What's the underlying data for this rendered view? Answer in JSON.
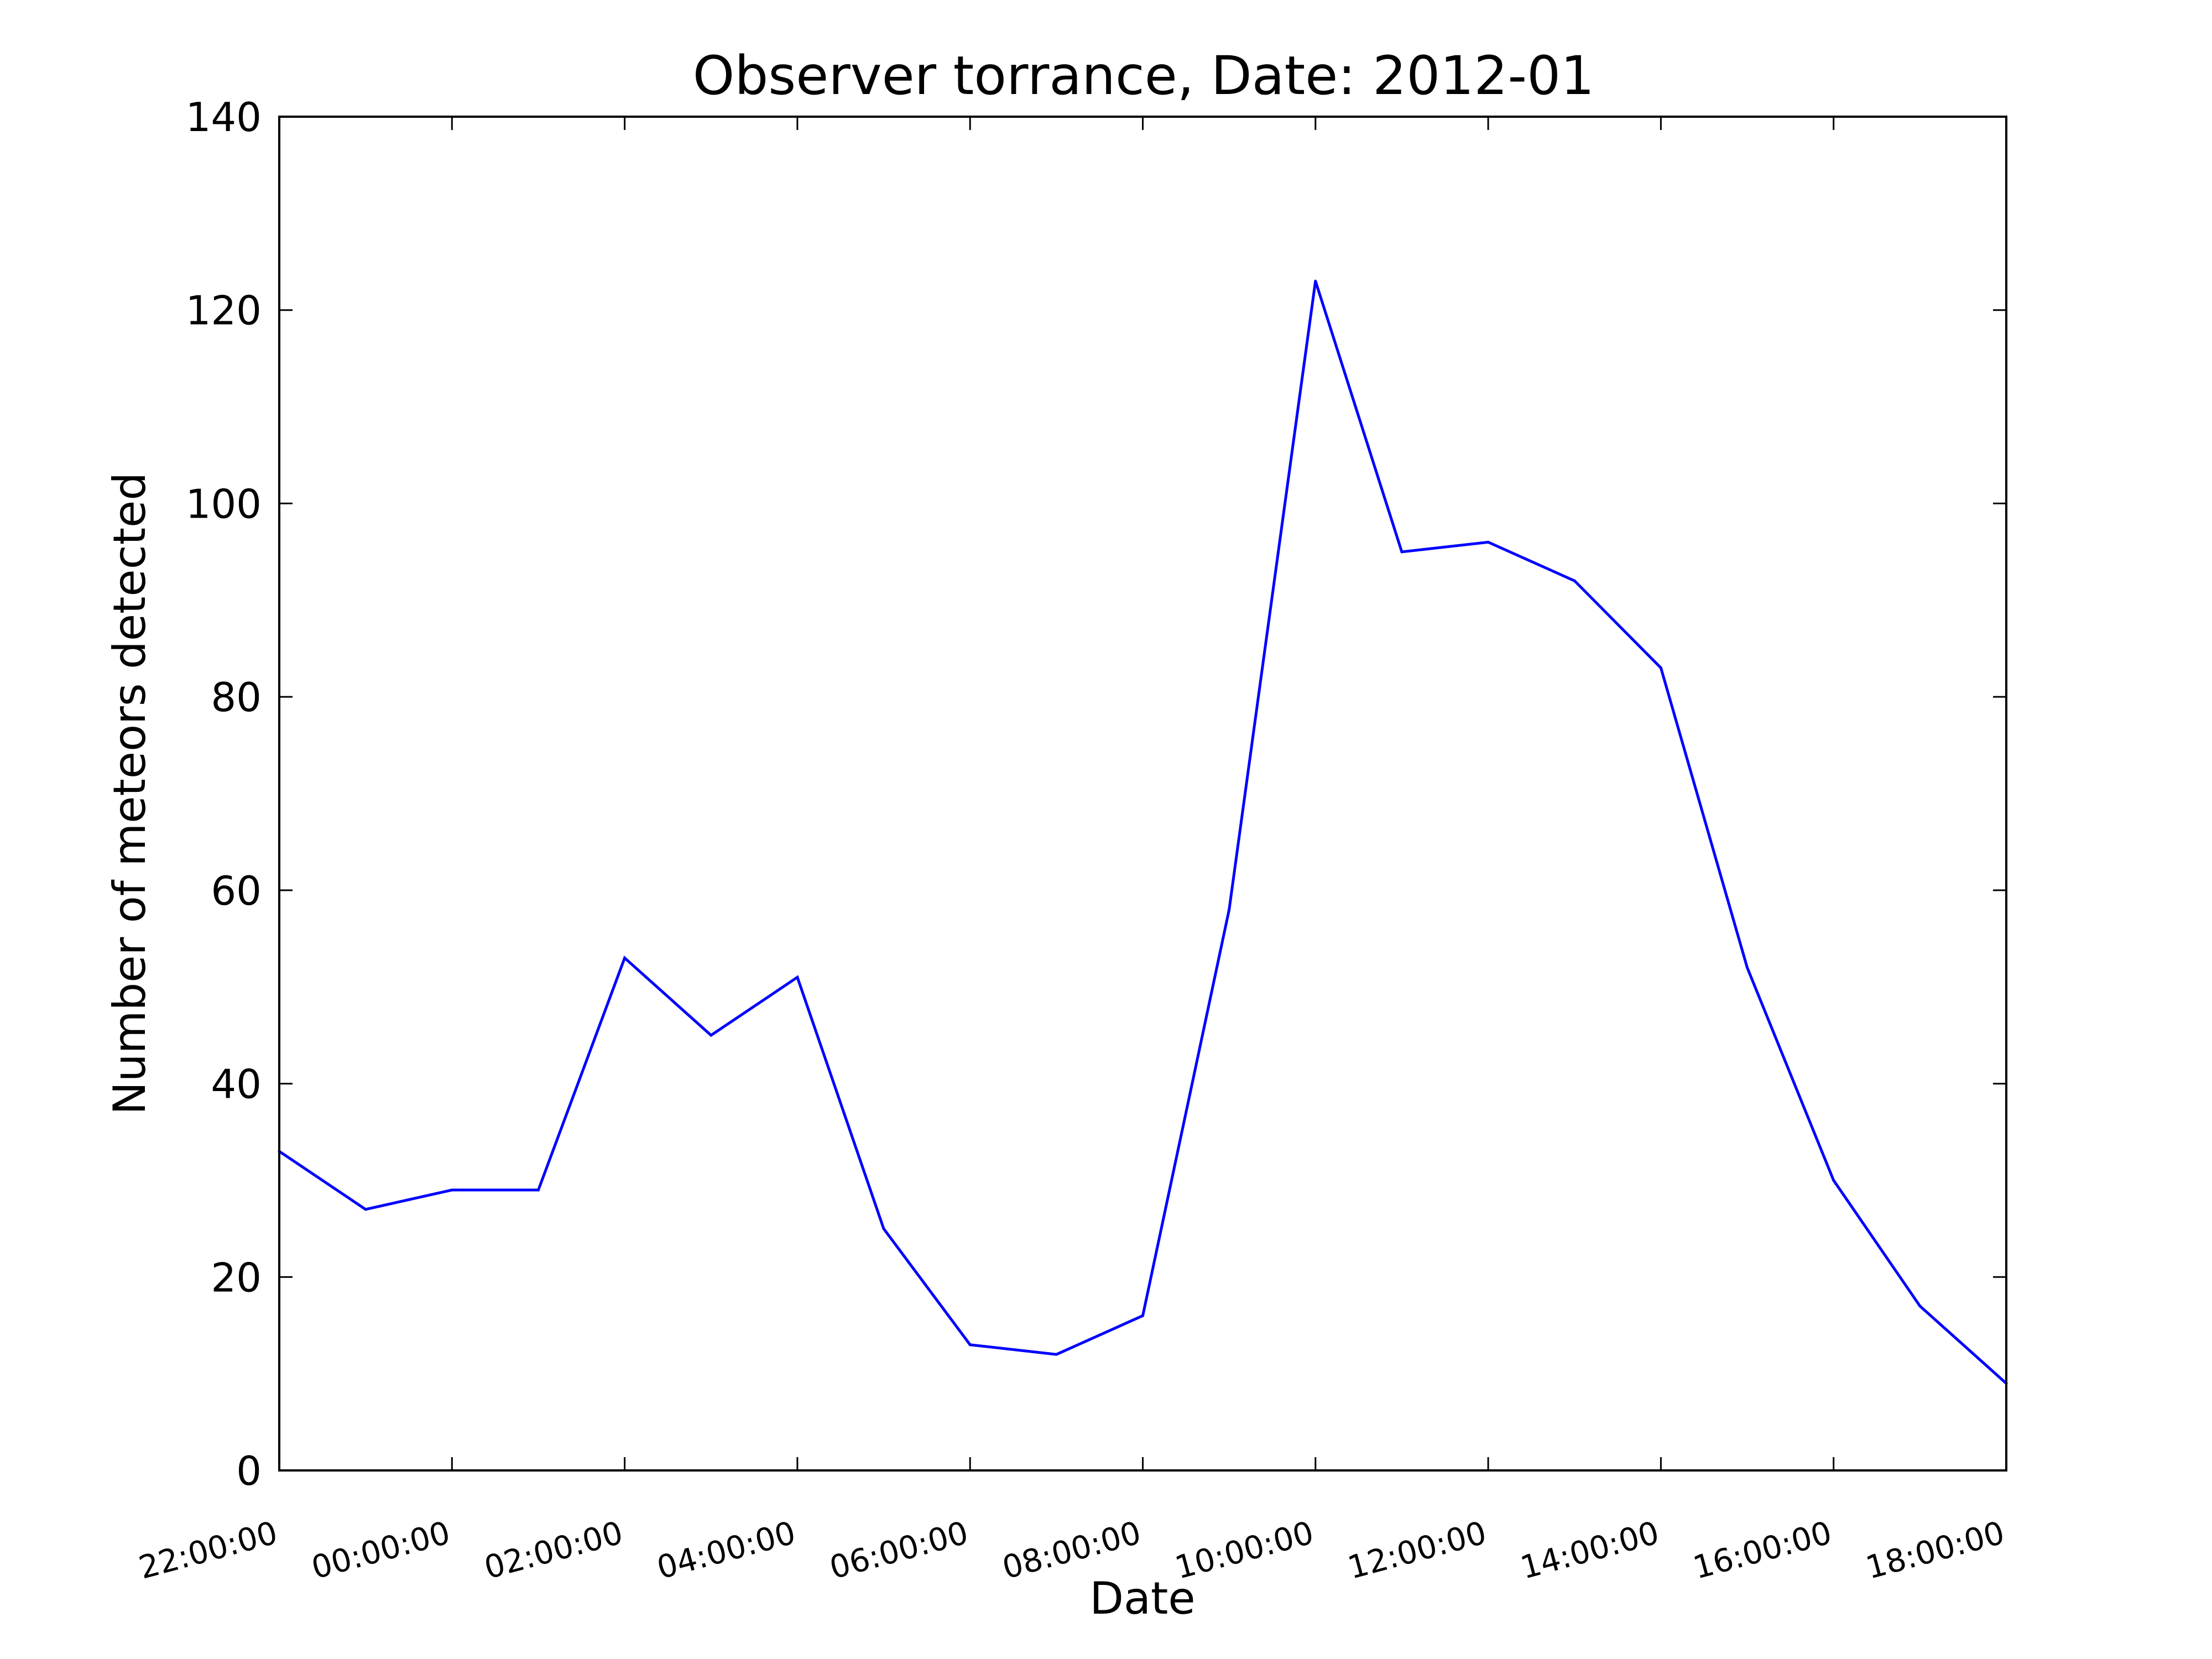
{
  "chart_data": {
    "type": "line",
    "title": "Observer torrance, Date: 2012-01",
    "xlabel": "Date",
    "ylabel": "Number of meteors detected",
    "ylim": [
      0,
      140
    ],
    "yticks": [
      0,
      20,
      40,
      60,
      80,
      100,
      120,
      140
    ],
    "xtick_labels": [
      "22:00:00",
      "00:00:00",
      "02:00:00",
      "04:00:00",
      "06:00:00",
      "08:00:00",
      "10:00:00",
      "12:00:00",
      "14:00:00",
      "16:00:00",
      "18:00:00"
    ],
    "x": [
      "22:00",
      "23:00",
      "00:00",
      "01:00",
      "02:00",
      "03:00",
      "04:00",
      "05:00",
      "06:00",
      "07:00",
      "08:00",
      "09:00",
      "10:00",
      "11:00",
      "12:00",
      "13:00",
      "14:00",
      "15:00",
      "16:00",
      "17:00",
      "18:00"
    ],
    "series": [
      {
        "color": "#0000ff",
        "values": [
          33,
          27,
          29,
          29,
          53,
          45,
          51,
          25,
          13,
          12,
          16,
          58,
          123,
          95,
          96,
          92,
          83,
          52,
          30,
          17,
          9
        ]
      }
    ],
    "grid": false,
    "legend": "none"
  }
}
